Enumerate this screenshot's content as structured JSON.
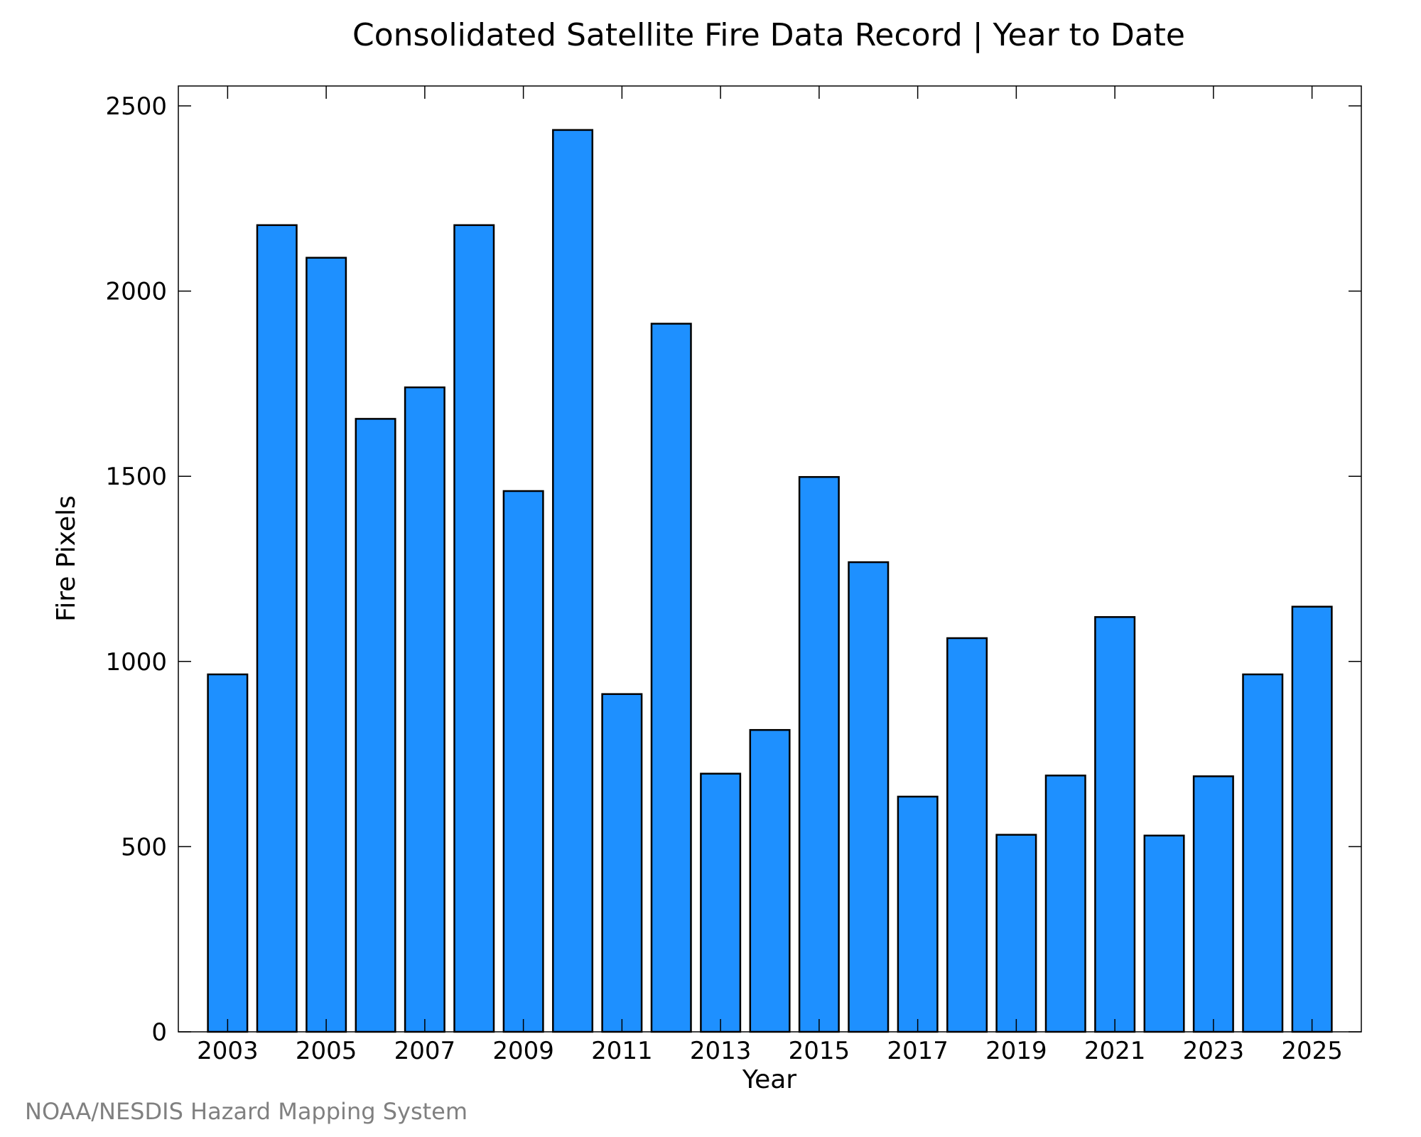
{
  "chart_data": {
    "type": "bar",
    "title": "Consolidated Satellite Fire Data Record | Year to Date",
    "xlabel": "Year",
    "ylabel": "Fire Pixels",
    "categories": [
      2003,
      2004,
      2005,
      2006,
      2007,
      2008,
      2009,
      2010,
      2011,
      2012,
      2013,
      2014,
      2015,
      2016,
      2017,
      2018,
      2019,
      2020,
      2021,
      2022,
      2023,
      2024,
      2025
    ],
    "values": [
      965,
      2178,
      2090,
      1655,
      1740,
      2178,
      1460,
      2435,
      912,
      1912,
      697,
      815,
      1498,
      1268,
      635,
      1063,
      532,
      692,
      1120,
      530,
      690,
      965,
      1148
    ],
    "x_tick_labels": [
      "2003",
      "2005",
      "2007",
      "2009",
      "2011",
      "2013",
      "2015",
      "2017",
      "2019",
      "2021",
      "2023",
      "2025"
    ],
    "y_tick_labels": [
      "0",
      "500",
      "1000",
      "1500",
      "2000",
      "2500"
    ],
    "ylim": [
      0,
      2550
    ],
    "grid": false,
    "bar_color": "#1E90FF",
    "edge_color": "#000000",
    "credit": "NOAA/NESDIS Hazard Mapping System"
  }
}
